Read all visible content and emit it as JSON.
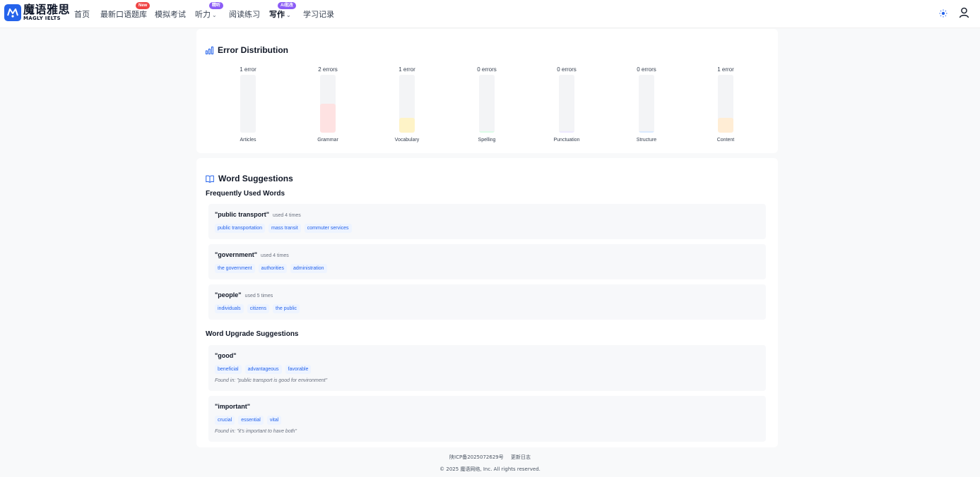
{
  "brand": {
    "name_cn": "魔语雅思",
    "name_en": "MAGLY IELTS",
    "accent": "#2563eb"
  },
  "nav": {
    "items": [
      {
        "label": "首页"
      },
      {
        "label": "最新口语题库",
        "badge": "New"
      },
      {
        "label": "模拟考试"
      },
      {
        "label": "听力",
        "badge": "精听"
      },
      {
        "label": "阅读练习"
      },
      {
        "label": "写作",
        "badge": "AI批改"
      },
      {
        "label": "学习记录"
      }
    ],
    "icons": [
      "sun-icon",
      "user-icon"
    ]
  },
  "error_distribution": {
    "title": "Error Distribution",
    "chart_data": {
      "type": "bar",
      "categories": [
        "Articles",
        "Grammar",
        "Vocabulary",
        "Spelling",
        "Punctuation",
        "Structure",
        "Content"
      ],
      "values": [
        1,
        2,
        1,
        0,
        0,
        0,
        1
      ],
      "count_labels": [
        "1 error",
        "2 errors",
        "1 error",
        "0 errors",
        "0 errors",
        "0 errors",
        "1 error"
      ],
      "colors": [
        "#f3f4f6",
        "#fee2e2",
        "#fef3c7",
        "#dcfce7",
        "#ede9fe",
        "#dbeafe",
        "#ffedd5"
      ],
      "ylim": [
        0,
        4
      ]
    }
  },
  "word_suggestions": {
    "title": "Word Suggestions",
    "frequent_heading": "Frequently Used Words",
    "frequent": [
      {
        "term": "\"public transport\"",
        "meta": "used 4 times",
        "alternatives": [
          "public transportation",
          "mass transit",
          "commuter services"
        ]
      },
      {
        "term": "\"government\"",
        "meta": "used 4 times",
        "alternatives": [
          "the government",
          "authorities",
          "administration"
        ]
      },
      {
        "term": "\"people\"",
        "meta": "used 5 times",
        "alternatives": [
          "individuals",
          "citizens",
          "the public"
        ]
      }
    ],
    "upgrade_heading": "Word Upgrade Suggestions",
    "upgrades": [
      {
        "term": "\"good\"",
        "alternatives": [
          "beneficial",
          "advantageous",
          "favorable"
        ],
        "found": "Found in: \"public transport is good for environment\""
      },
      {
        "term": "\"important\"",
        "alternatives": [
          "crucial",
          "essential",
          "vital"
        ],
        "found": "Found in: \"it's important to have both\""
      }
    ]
  },
  "footer": {
    "icp": "陕ICP备2025072629号",
    "changelog": "更新日志",
    "copyright": "© 2025 魔语网络, Inc. All rights reserved."
  }
}
